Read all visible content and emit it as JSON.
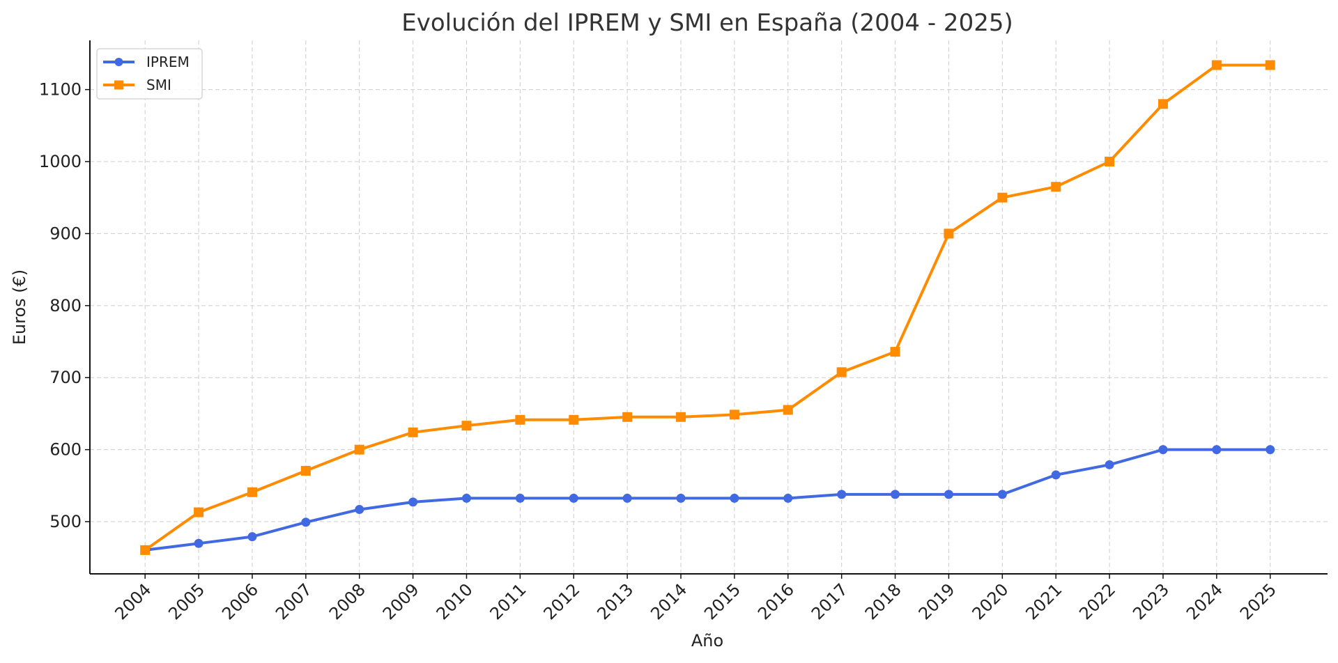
{
  "chart_data": {
    "type": "line",
    "title": "Evolución del IPREM y SMI en España (2004 - 2025)",
    "xlabel": "Año",
    "ylabel": "Euros (€)",
    "x": [
      2004,
      2005,
      2006,
      2007,
      2008,
      2009,
      2010,
      2011,
      2012,
      2013,
      2014,
      2015,
      2016,
      2017,
      2018,
      2019,
      2020,
      2021,
      2022,
      2023,
      2024,
      2025
    ],
    "x_tick_labels": [
      "2004",
      "2005",
      "2006",
      "2007",
      "2008",
      "2009",
      "2010",
      "2011",
      "2012",
      "2013",
      "2014",
      "2015",
      "2016",
      "2017",
      "2018",
      "2019",
      "2020",
      "2021",
      "2022",
      "2023",
      "2024",
      "2025"
    ],
    "y_ticks": [
      500,
      600,
      700,
      800,
      900,
      1000,
      1100
    ],
    "y_tick_labels": [
      "500",
      "600",
      "700",
      "800",
      "900",
      "1000",
      "1100"
    ],
    "xlim": [
      2002.97,
      2026.07
    ],
    "ylim": [
      427.5,
      1168.3
    ],
    "grid": true,
    "legend_position": "top-left",
    "series": [
      {
        "name": "IPREM",
        "color": "#4169E1",
        "marker": "circle",
        "values": [
          460.5,
          469.8,
          479.1,
          499.2,
          516.9,
          527.24,
          532.51,
          532.51,
          532.51,
          532.51,
          532.51,
          532.51,
          532.51,
          537.84,
          537.84,
          537.84,
          537.84,
          564.9,
          579.02,
          600.0,
          600.0,
          600.0
        ]
      },
      {
        "name": "SMI",
        "color": "#FF8C00",
        "marker": "square",
        "values": [
          460.5,
          513.0,
          540.9,
          570.6,
          600.0,
          624.0,
          633.3,
          641.4,
          641.4,
          645.3,
          645.3,
          648.6,
          655.2,
          707.6,
          735.9,
          900.0,
          950.0,
          965.0,
          1000.0,
          1080.0,
          1134.0,
          1134.0
        ]
      }
    ]
  }
}
